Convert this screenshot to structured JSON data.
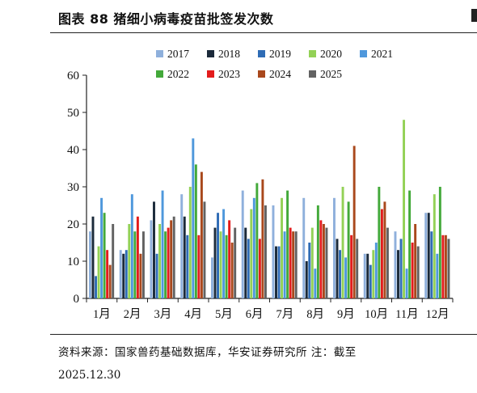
{
  "header": {
    "title": "图表 88 猪细小病毒疫苗批签发次数"
  },
  "footer": {
    "source": "资料来源：国家兽药基础数据库，华安证券研究所 注：截至",
    "date": "2025.12.30"
  },
  "chart_data": {
    "type": "bar",
    "categories": [
      "1月",
      "2月",
      "3月",
      "4月",
      "5月",
      "6月",
      "7月",
      "8月",
      "9月",
      "10月",
      "11月",
      "12月"
    ],
    "ylim": [
      0,
      60
    ],
    "yticks": [
      0,
      10,
      20,
      30,
      40,
      50,
      60
    ],
    "legend_position": "top",
    "grid": false,
    "series": [
      {
        "name": "2017",
        "color": "#8fb0dc",
        "values": [
          18,
          13,
          21,
          28,
          11,
          29,
          25,
          27,
          27,
          12,
          18,
          23
        ]
      },
      {
        "name": "2018",
        "color": "#1b2a3a",
        "values": [
          22,
          12,
          26,
          22,
          19,
          19,
          14,
          10,
          16,
          12,
          13,
          23
        ]
      },
      {
        "name": "2019",
        "color": "#2f6cb5",
        "values": [
          6,
          13,
          12,
          17,
          23,
          16,
          14,
          15,
          13,
          9,
          16,
          18
        ]
      },
      {
        "name": "2020",
        "color": "#93d156",
        "values": [
          14,
          20,
          20,
          30,
          18,
          24,
          27,
          19,
          30,
          13,
          48,
          28
        ]
      },
      {
        "name": "2021",
        "color": "#4f98dc",
        "values": [
          27,
          28,
          29,
          43,
          24,
          27,
          18,
          8,
          11,
          15,
          8,
          12
        ]
      },
      {
        "name": "2022",
        "color": "#43a93a",
        "values": [
          23,
          18,
          18,
          36,
          17,
          31,
          29,
          25,
          26,
          30,
          29,
          30
        ]
      },
      {
        "name": "2023",
        "color": "#e31c1c",
        "values": [
          13,
          22,
          19,
          17,
          21,
          16,
          19,
          21,
          17,
          24,
          15,
          17
        ]
      },
      {
        "name": "2024",
        "color": "#a9481c",
        "values": [
          9,
          12,
          21,
          34,
          15,
          32,
          18,
          20,
          41,
          26,
          20,
          17
        ]
      },
      {
        "name": "2025",
        "color": "#626262",
        "values": [
          20,
          18,
          22,
          26,
          19,
          25,
          18,
          19,
          16,
          19,
          14,
          16
        ]
      }
    ]
  }
}
